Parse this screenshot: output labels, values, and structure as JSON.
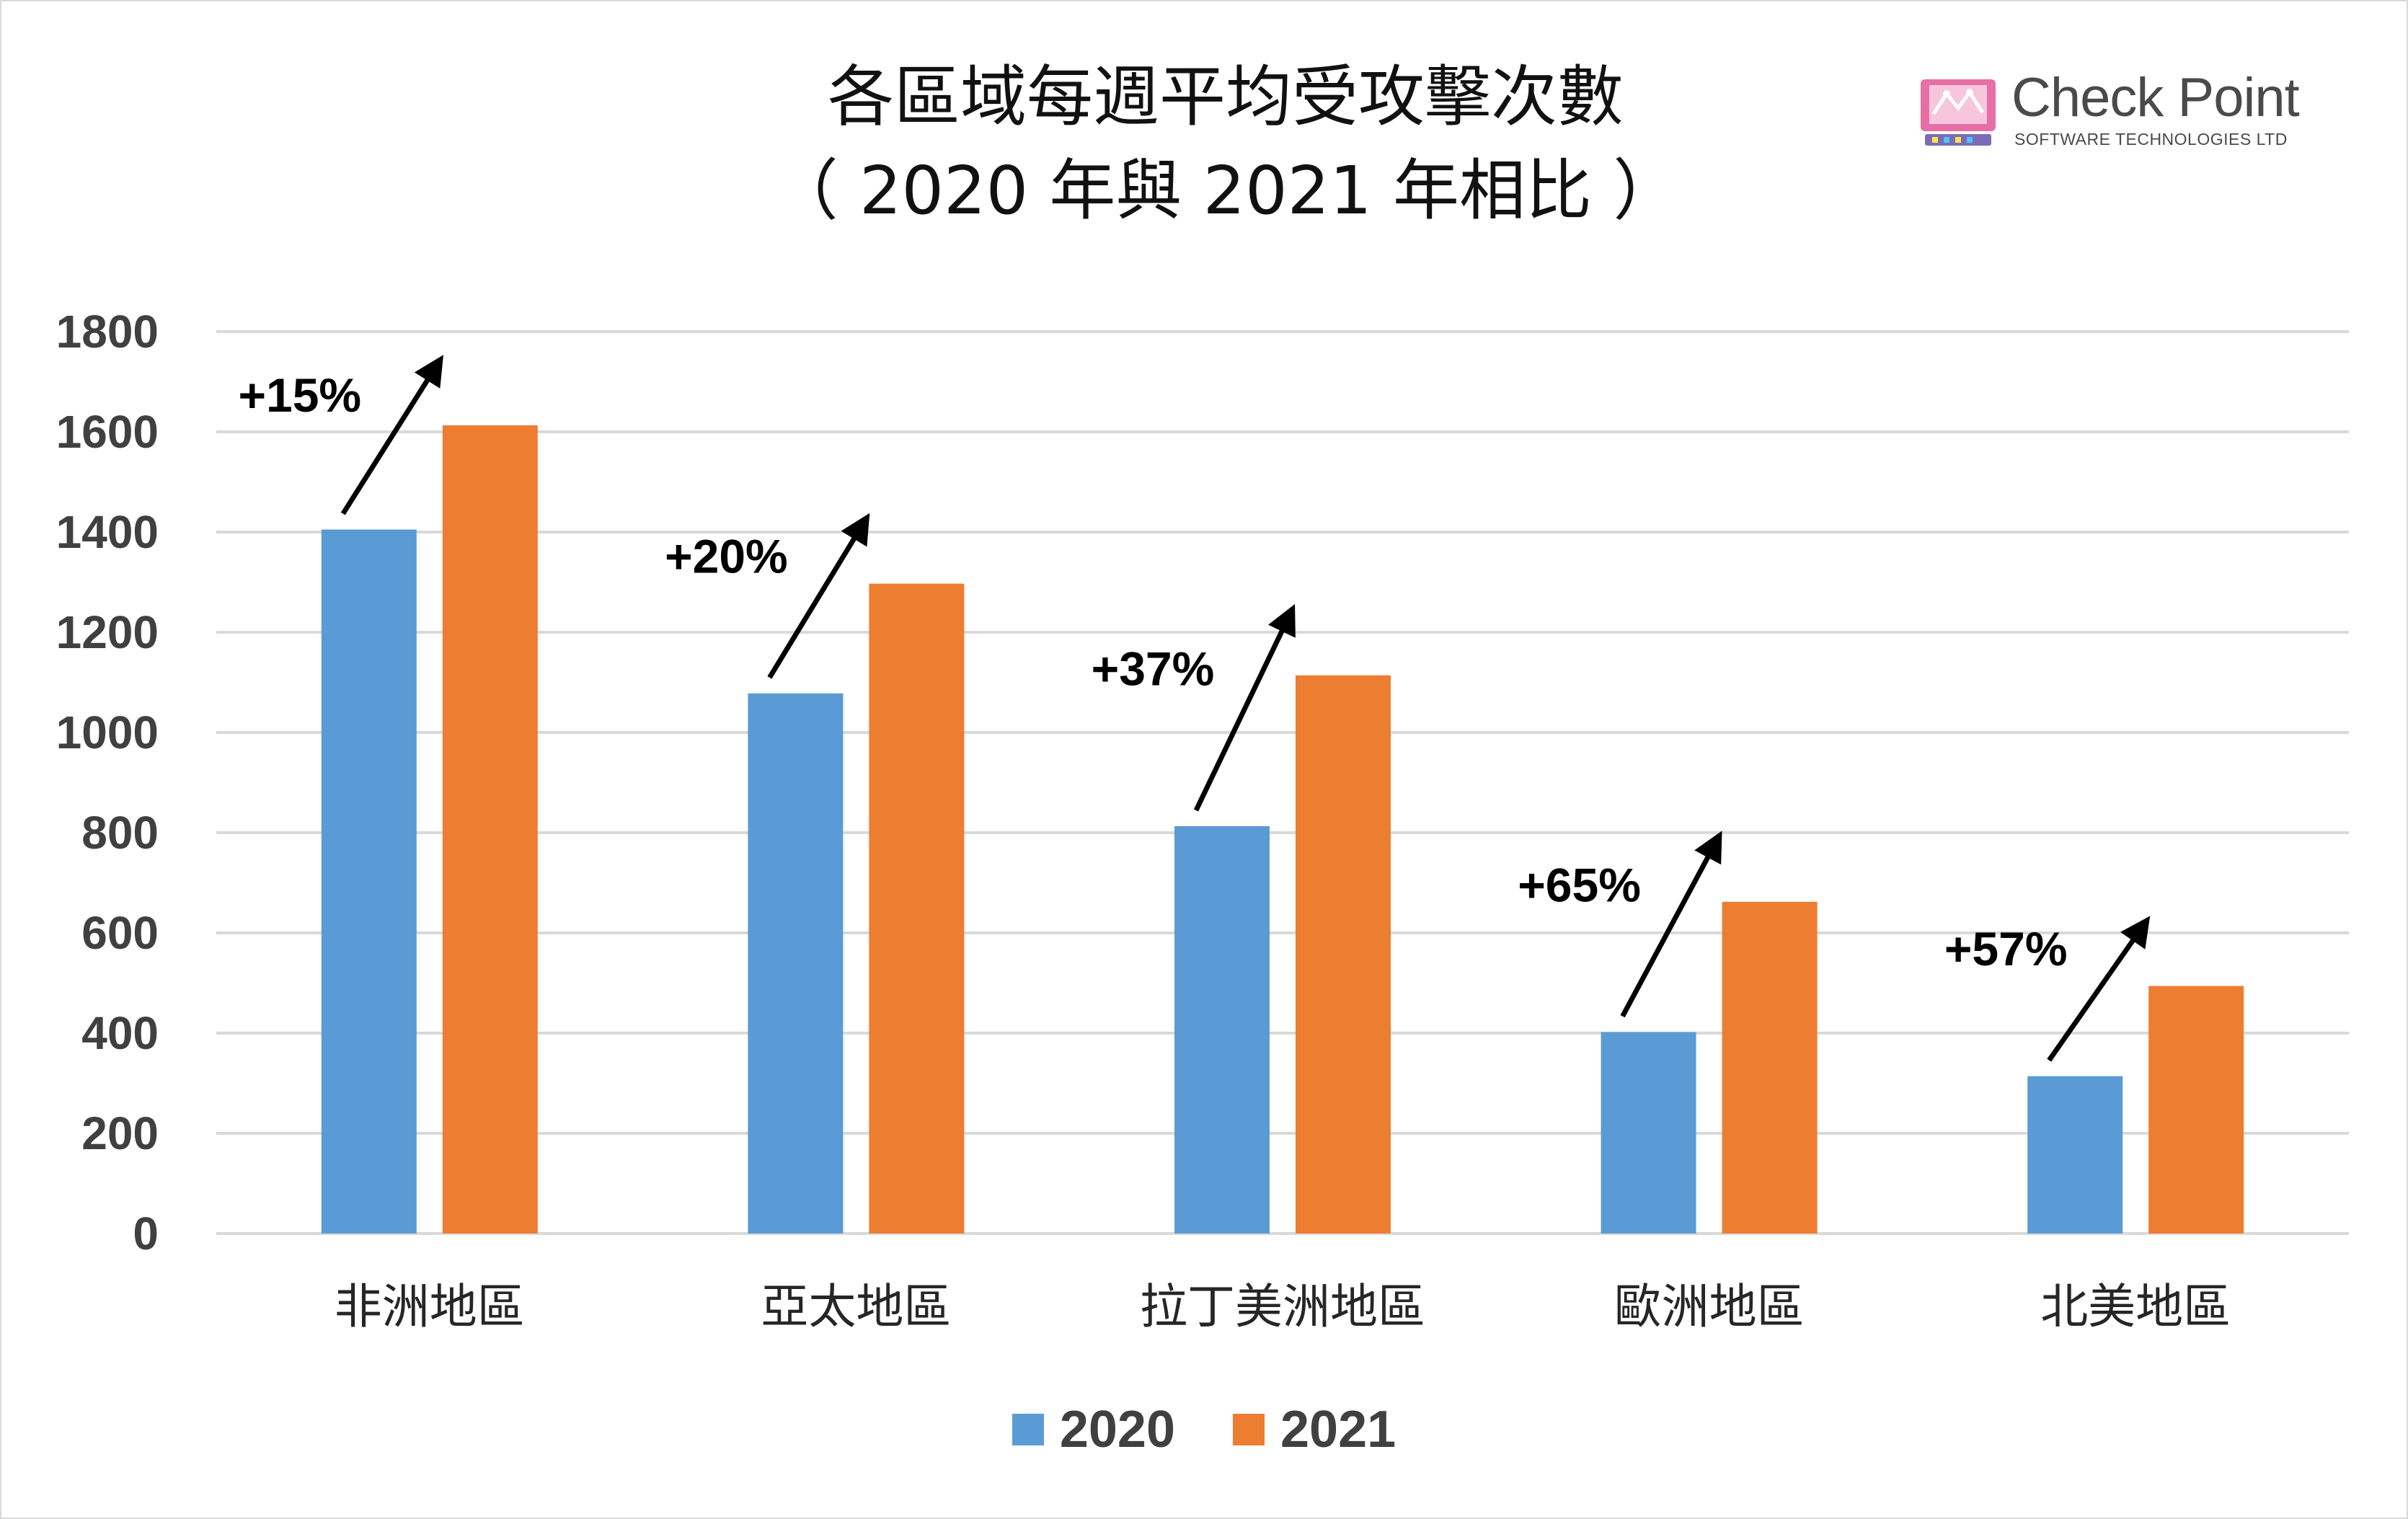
{
  "title_line1": "各區域每週平均受攻擊次數",
  "title_line2": "（ 2020 年與 2021 年相比 ）",
  "logo": {
    "name": "Check Point",
    "subtitle": "SOFTWARE TECHNOLOGIES LTD"
  },
  "colors": {
    "series_2020": "#5b9bd5",
    "series_2021": "#ed7d31",
    "grid": "#d9d9d9"
  },
  "chart_data": {
    "type": "bar",
    "title": "各區域每週平均受攻擊次數（ 2020 年與 2021 年相比 ）",
    "categories": [
      "非洲地區",
      "亞太地區",
      "拉丁美洲地區",
      "歐洲地區",
      "北美地區"
    ],
    "series": [
      {
        "name": "2020",
        "values": [
          1405,
          1078,
          813,
          402,
          314
        ]
      },
      {
        "name": "2021",
        "values": [
          1613,
          1297,
          1114,
          662,
          494
        ]
      }
    ],
    "annotations": [
      "+15%",
      "+20%",
      "+37%",
      "+65%",
      "+57%"
    ],
    "ylim": [
      0,
      1800
    ],
    "yticks": [
      0,
      200,
      400,
      600,
      800,
      1000,
      1200,
      1400,
      1600,
      1800
    ],
    "grid": true,
    "legend": "bottom"
  }
}
